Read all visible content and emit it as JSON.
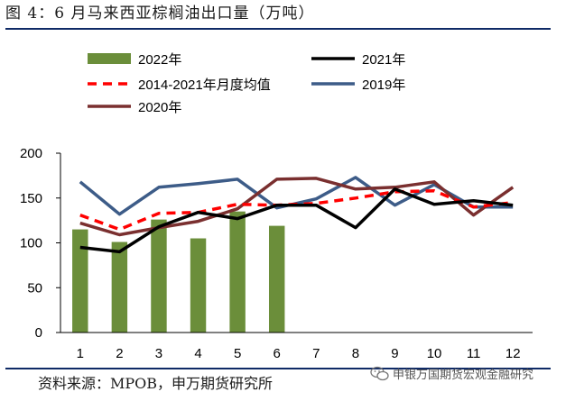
{
  "title": "图 4：6 月马来西亚棕榈油出口量（万吨）",
  "source": "资料来源：MPOB，申万期货研究所",
  "watermark": "申银万国期货宏观金融研究",
  "colors": {
    "bar_2022": "#6b8e3a",
    "line_2021": "#000000",
    "line_avg": "#ff0000",
    "line_2019": "#3d5c88",
    "line_2020": "#7a2f2f",
    "rule": "#0f2a66"
  },
  "chart_data": {
    "type": "bar",
    "title": "",
    "xlabel": "",
    "ylabel": "",
    "categories": [
      "1",
      "2",
      "3",
      "4",
      "5",
      "6",
      "7",
      "8",
      "9",
      "10",
      "11",
      "12"
    ],
    "ylim": [
      0,
      200
    ],
    "yticks": [
      0,
      50,
      100,
      150,
      200
    ],
    "grid": false,
    "legend_position": "top",
    "series": [
      {
        "name": "2022年",
        "kind": "bar",
        "color": "#6b8e3a",
        "values": [
          115,
          101,
          126,
          105,
          135,
          119,
          null,
          null,
          null,
          null,
          null,
          null
        ]
      },
      {
        "name": "2021年",
        "kind": "line",
        "style": "solid",
        "color": "#000000",
        "values": [
          95,
          90,
          118,
          134,
          127,
          142,
          142,
          117,
          160,
          143,
          147,
          142
        ]
      },
      {
        "name": "2014-2021年月度均值",
        "kind": "line",
        "style": "dashed",
        "color": "#ff0000",
        "values": [
          131,
          115,
          133,
          134,
          143,
          142,
          144,
          150,
          157,
          158,
          140,
          145
        ]
      },
      {
        "name": "2019年",
        "kind": "line",
        "style": "solid",
        "color": "#3d5c88",
        "values": [
          168,
          132,
          162,
          166,
          171,
          139,
          149,
          173,
          142,
          165,
          140,
          140
        ]
      },
      {
        "name": "2020年",
        "kind": "line",
        "style": "solid",
        "color": "#7a2f2f",
        "values": [
          122,
          109,
          117,
          124,
          138,
          171,
          172,
          160,
          162,
          168,
          131,
          162
        ]
      }
    ]
  }
}
